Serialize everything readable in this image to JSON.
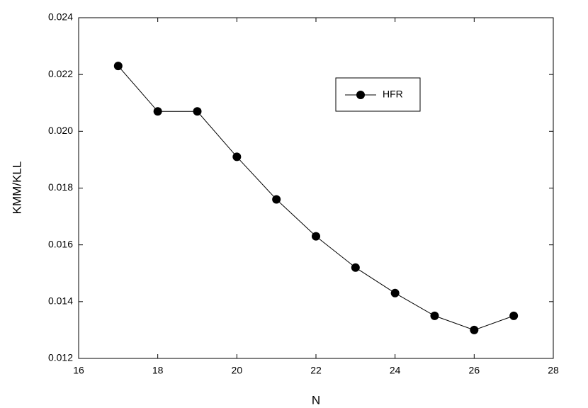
{
  "chart_data": {
    "type": "line",
    "x_label": "N",
    "y_label": "KMM/KLL",
    "x": [
      17,
      18,
      19,
      20,
      21,
      22,
      23,
      24,
      25,
      26,
      27
    ],
    "series": [
      {
        "name": "HFR",
        "color": "#000000",
        "values": [
          0.0223,
          0.0207,
          0.0207,
          0.0191,
          0.0176,
          0.0163,
          0.0152,
          0.0143,
          0.0135,
          0.013,
          0.0135
        ]
      }
    ],
    "xlim": [
      16,
      28
    ],
    "xticks": [
      16,
      18,
      20,
      22,
      24,
      26,
      28
    ],
    "ylim": [
      0.012,
      0.024
    ],
    "yticks": [
      0.012,
      0.014,
      0.016,
      0.018,
      {
        "value": 0.02,
        "label": "0.020"
      },
      0.022,
      0.024
    ]
  }
}
